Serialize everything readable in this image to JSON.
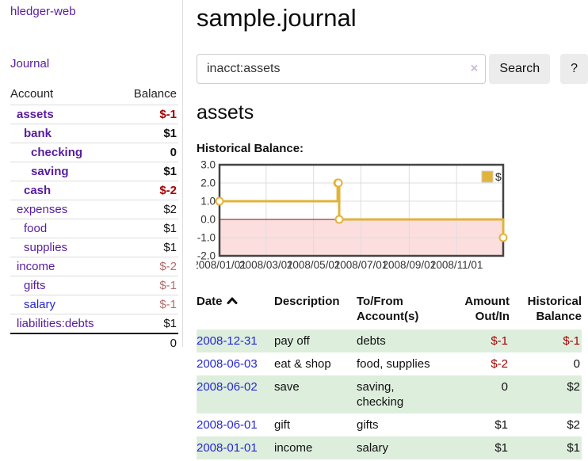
{
  "colors": {
    "link_purple": "#571c9e",
    "link_blue": "#2727cf",
    "negative_strong": "#a40000",
    "negative_soft": "#b26b6b",
    "row_stripe_green": "#ddeedd",
    "chart_line_gold": "#e2b33c",
    "chart_negative_fill": "#fcdede",
    "chart_zero_line": "#a40000",
    "button_bg": "#ececec"
  },
  "sidebar": {
    "brand": "hledger-web",
    "journal_link": "Journal",
    "account_header": "Account",
    "balance_header": "Balance",
    "accounts": [
      {
        "label": "assets",
        "depth": 0,
        "bold": true,
        "label_color": "purple",
        "balance": "$-1",
        "balance_color": "neg-strong"
      },
      {
        "label": "bank",
        "depth": 1,
        "bold": true,
        "label_color": "purple",
        "balance": "$1",
        "balance_color": "plain"
      },
      {
        "label": "checking",
        "depth": 2,
        "bold": true,
        "label_color": "purple",
        "balance": "0",
        "balance_color": "plain"
      },
      {
        "label": "saving",
        "depth": 2,
        "bold": true,
        "label_color": "purple",
        "balance": "$1",
        "balance_color": "plain"
      },
      {
        "label": "cash",
        "depth": 1,
        "bold": true,
        "label_color": "purple",
        "balance": "$-2",
        "balance_color": "neg-strong"
      },
      {
        "label": "expenses",
        "depth": 0,
        "bold": false,
        "label_color": "purple",
        "balance": "$2",
        "balance_color": "plain"
      },
      {
        "label": "food",
        "depth": 1,
        "bold": false,
        "label_color": "purple",
        "balance": "$1",
        "balance_color": "plain"
      },
      {
        "label": "supplies",
        "depth": 1,
        "bold": false,
        "label_color": "purple",
        "balance": "$1",
        "balance_color": "plain"
      },
      {
        "label": "income",
        "depth": 0,
        "bold": false,
        "label_color": "purple",
        "balance": "$-2",
        "balance_color": "neg-soft"
      },
      {
        "label": "gifts",
        "depth": 1,
        "bold": false,
        "label_color": "purple",
        "balance": "$-1",
        "balance_color": "neg-soft"
      },
      {
        "label": "salary",
        "depth": 1,
        "bold": false,
        "label_color": "blue",
        "balance": "$-1",
        "balance_color": "neg-soft"
      },
      {
        "label": "liabilities:debts",
        "depth": 0,
        "bold": false,
        "label_color": "purple",
        "balance": "$1",
        "balance_color": "plain"
      }
    ],
    "total": "0"
  },
  "header": {
    "title": "sample.journal"
  },
  "search": {
    "value": "inacct:assets",
    "clear_label": "×",
    "button_label": "Search",
    "help_label": "?"
  },
  "account_page": {
    "title": "assets",
    "chart_label": "Historical Balance:"
  },
  "chart_data": {
    "type": "line",
    "step": true,
    "title": "Historical Balance",
    "legend": {
      "label": "$",
      "position": "top-right"
    },
    "grid": true,
    "ylim": [
      -2,
      3
    ],
    "xlim_days": [
      0,
      365
    ],
    "y_ticks": [
      {
        "value": 3,
        "label": "3.0"
      },
      {
        "value": 2,
        "label": "2.0"
      },
      {
        "value": 1,
        "label": "1.0"
      },
      {
        "value": 0,
        "label": "0.0"
      },
      {
        "value": -1,
        "label": "-1.0"
      },
      {
        "value": -2,
        "label": "-2.0"
      }
    ],
    "x_ticks": [
      {
        "day": 0,
        "label": "2008/01/01"
      },
      {
        "day": 60,
        "label": "2008/03/01"
      },
      {
        "day": 121,
        "label": "2008/05/01"
      },
      {
        "day": 182,
        "label": "2008/07/01"
      },
      {
        "day": 244,
        "label": "2008/09/01"
      },
      {
        "day": 305,
        "label": "2008/11/01"
      }
    ],
    "series": [
      {
        "name": "$",
        "points": [
          {
            "date": "2008-01-01",
            "day": 0,
            "value": 1
          },
          {
            "date": "2008-06-01",
            "day": 152,
            "value": 2
          },
          {
            "date": "2008-06-02",
            "day": 153,
            "value": 2
          },
          {
            "date": "2008-06-03",
            "day": 154,
            "value": 0
          },
          {
            "date": "2008-12-31",
            "day": 365,
            "value": -1
          }
        ]
      }
    ],
    "negative_region_shaded": true
  },
  "transactions": {
    "columns": [
      "Date",
      "Description",
      "To/From Account(s)",
      "Amount Out/In",
      "Historical Balance"
    ],
    "sort_icon": "chevron-up",
    "rows": [
      {
        "date": "2008-12-31",
        "description": "pay off",
        "accounts": "debts",
        "amount": "$-1",
        "amount_neg": true,
        "balance": "$-1",
        "balance_neg": true
      },
      {
        "date": "2008-06-03",
        "description": "eat & shop",
        "accounts": "food, supplies",
        "amount": "$-2",
        "amount_neg": true,
        "balance": "0",
        "balance_neg": false
      },
      {
        "date": "2008-06-02",
        "description": "save",
        "accounts": "saving, checking",
        "amount": "0",
        "amount_neg": false,
        "balance": "$2",
        "balance_neg": false
      },
      {
        "date": "2008-06-01",
        "description": "gift",
        "accounts": "gifts",
        "amount": "$1",
        "amount_neg": false,
        "balance": "$2",
        "balance_neg": false
      },
      {
        "date": "2008-01-01",
        "description": "income",
        "accounts": "salary",
        "amount": "$1",
        "amount_neg": false,
        "balance": "$1",
        "balance_neg": false
      }
    ]
  }
}
